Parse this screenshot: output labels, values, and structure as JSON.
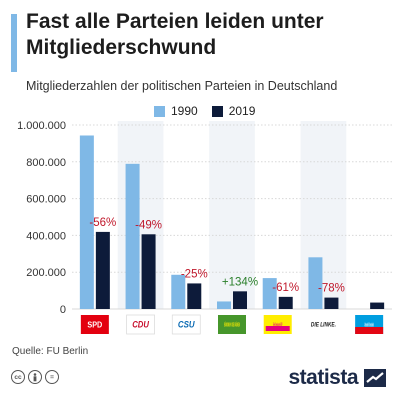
{
  "header": {
    "title": "Fast alle Parteien leiden unter Mitgliederschwund",
    "subtitle": "Mitgliederzahlen der politischen Parteien in Deutschland"
  },
  "footer": {
    "source": "Quelle: FU Berlin",
    "brand": "statista",
    "license_icons": [
      "cc",
      "by",
      "nd"
    ]
  },
  "colors": {
    "series_1990": "#7fb8e6",
    "series_2019": "#0d1b3a",
    "change_negative": "#c0182b",
    "change_positive": "#2a7f2a"
  },
  "chart_data": {
    "type": "bar",
    "categories": [
      "SPD",
      "CDU",
      "CSU",
      "Bündnis 90/Die Grünen",
      "FDP",
      "Die Linke",
      "AfD"
    ],
    "category_logo_text": [
      "SPD",
      "CDU",
      "CSU",
      "BÜNDNIS 90 DIE GRÜNEN",
      "Freie Demokraten FDP",
      "DIE LINKE.",
      "Alternative für Deutschland"
    ],
    "series": [
      {
        "name": "1990",
        "values": [
          943000,
          789000,
          186000,
          41000,
          168000,
          281000,
          null
        ]
      },
      {
        "name": "2019",
        "values": [
          419000,
          406000,
          139000,
          96000,
          66000,
          62000,
          35000
        ]
      }
    ],
    "change_labels": [
      "-56%",
      "-49%",
      "-25%",
      "+134%",
      "-61%",
      "-78%",
      ""
    ],
    "y_ticks": [
      "0",
      "200.000",
      "400.000",
      "600.000",
      "800.000",
      "1.000.000"
    ],
    "ylim": [
      0,
      1000000
    ],
    "grid": true,
    "legend_position": "top"
  }
}
